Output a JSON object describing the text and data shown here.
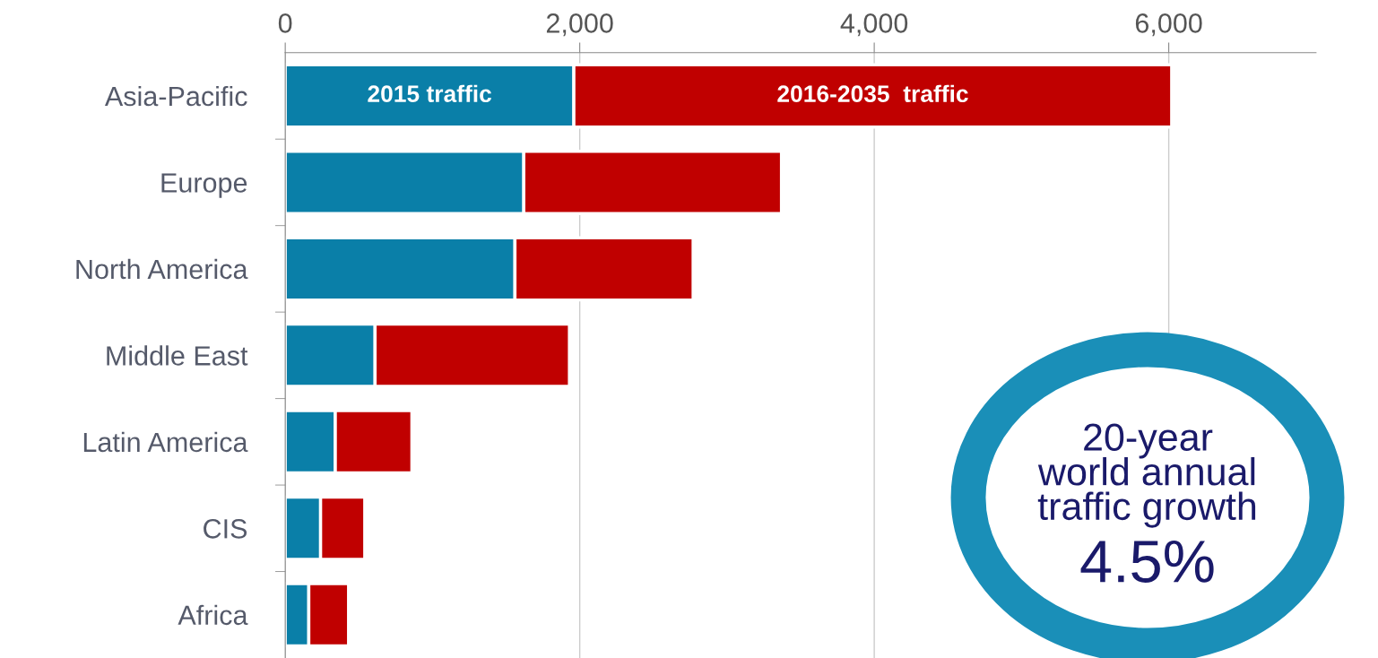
{
  "chart_data": {
    "type": "bar",
    "orientation": "horizontal",
    "stacked": true,
    "categories": [
      "Asia-Pacific",
      "Europe",
      "North America",
      "Middle East",
      "Latin America",
      "CIS",
      "Africa"
    ],
    "series": [
      {
        "name": "2015 traffic",
        "color": "#0a7fa8",
        "values": [
          1960,
          1620,
          1560,
          610,
          340,
          240,
          160
        ]
      },
      {
        "name": "2016-2035  traffic",
        "color": "#c00000",
        "values": [
          4060,
          1750,
          1210,
          1320,
          520,
          300,
          270
        ]
      }
    ],
    "xlim": [
      0,
      7000
    ],
    "xticks": [
      0,
      {
        "value": 2000,
        "label": "2,000"
      },
      {
        "value": 4000,
        "label": "4,000"
      },
      {
        "value": 6000,
        "label": "6,000"
      }
    ],
    "grid": "x",
    "annotations": [
      "20-year\nworld annual\ntraffic growth",
      "4.5%"
    ]
  }
}
